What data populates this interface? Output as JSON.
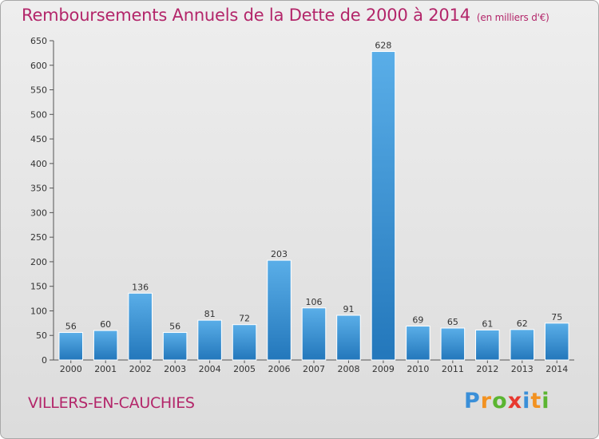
{
  "title": "Remboursements Annuels de la Dette de 2000 à 2014",
  "unit": "(en milliers d'€)",
  "city": "VILLERS-EN-CAUCHIES",
  "logo": {
    "letters": [
      "P",
      "r",
      "o",
      "x",
      "i",
      "t",
      "i"
    ],
    "colors": [
      "#3a8fd8",
      "#f29221",
      "#5bb531",
      "#e8382f",
      "#3a8fd8",
      "#f29221",
      "#5bb531"
    ]
  },
  "colors": {
    "title": "#b3266a",
    "bar_light": "#5aaee8",
    "bar_dark": "#2377bb"
  },
  "chart_data": {
    "type": "bar",
    "title": "Remboursements Annuels de la Dette de 2000 à 2014",
    "subtitle": "(en milliers d'€)",
    "xlabel": "",
    "ylabel": "",
    "categories": [
      "2000",
      "2001",
      "2002",
      "2003",
      "2004",
      "2005",
      "2006",
      "2007",
      "2008",
      "2009",
      "2010",
      "2011",
      "2012",
      "2013",
      "2014"
    ],
    "values": [
      56,
      60,
      136,
      56,
      81,
      72,
      203,
      106,
      91,
      628,
      69,
      65,
      61,
      62,
      75
    ],
    "ylim": [
      0,
      650
    ],
    "yticks": [
      0,
      50,
      100,
      150,
      200,
      250,
      300,
      350,
      400,
      450,
      500,
      550,
      600,
      650
    ],
    "grid": false,
    "data_labels": true
  }
}
